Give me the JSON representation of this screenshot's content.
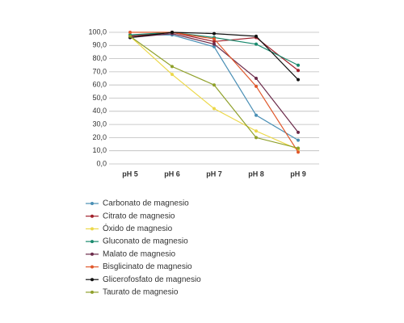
{
  "chart_data": {
    "type": "line",
    "categories": [
      "pH 5",
      "pH 6",
      "pH 7",
      "pH 8",
      "pH 9"
    ],
    "series": [
      {
        "name": "Carbonato de magnesio",
        "color": "#4a8fb5",
        "values": [
          98,
          98,
          89,
          37,
          18
        ]
      },
      {
        "name": "Citrato de magnesio",
        "color": "#a0202a",
        "values": [
          97,
          100,
          93,
          96,
          71
        ]
      },
      {
        "name": "Óxido de magnesio",
        "color": "#ecd84a",
        "values": [
          97,
          68,
          42,
          25,
          11
        ]
      },
      {
        "name": "Gluconato de magnesio",
        "color": "#1a8a6e",
        "values": [
          98,
          100,
          96,
          91,
          75
        ]
      },
      {
        "name": "Malato de magnesio",
        "color": "#6b2a4a",
        "values": [
          96,
          99,
          91,
          65,
          24
        ]
      },
      {
        "name": "Bisglicinato de magnesio",
        "color": "#e0572a",
        "values": [
          100,
          100,
          95,
          59,
          9
        ]
      },
      {
        "name": "Glicerofosfato de magnesio",
        "color": "#111111",
        "values": [
          96,
          100,
          99,
          97,
          64
        ]
      },
      {
        "name": "Taurato de magnesio",
        "color": "#8fa02a",
        "values": [
          97,
          74,
          60,
          20,
          12
        ]
      }
    ],
    "ylim": [
      0,
      100
    ],
    "yticks": [
      {
        "value": 0,
        "label": "0,0"
      },
      {
        "value": 10,
        "label": "10,0"
      },
      {
        "value": 20,
        "label": "20,0"
      },
      {
        "value": 30,
        "label": "30,0"
      },
      {
        "value": 40,
        "label": "40,0"
      },
      {
        "value": 50,
        "label": "50,0"
      },
      {
        "value": 60,
        "label": "60,0"
      },
      {
        "value": 70,
        "label": "70,0"
      },
      {
        "value": 80,
        "label": "80,0"
      },
      {
        "value": 90,
        "label": "90,0"
      },
      {
        "value": 100,
        "label": "100,0"
      }
    ],
    "grid": true
  }
}
